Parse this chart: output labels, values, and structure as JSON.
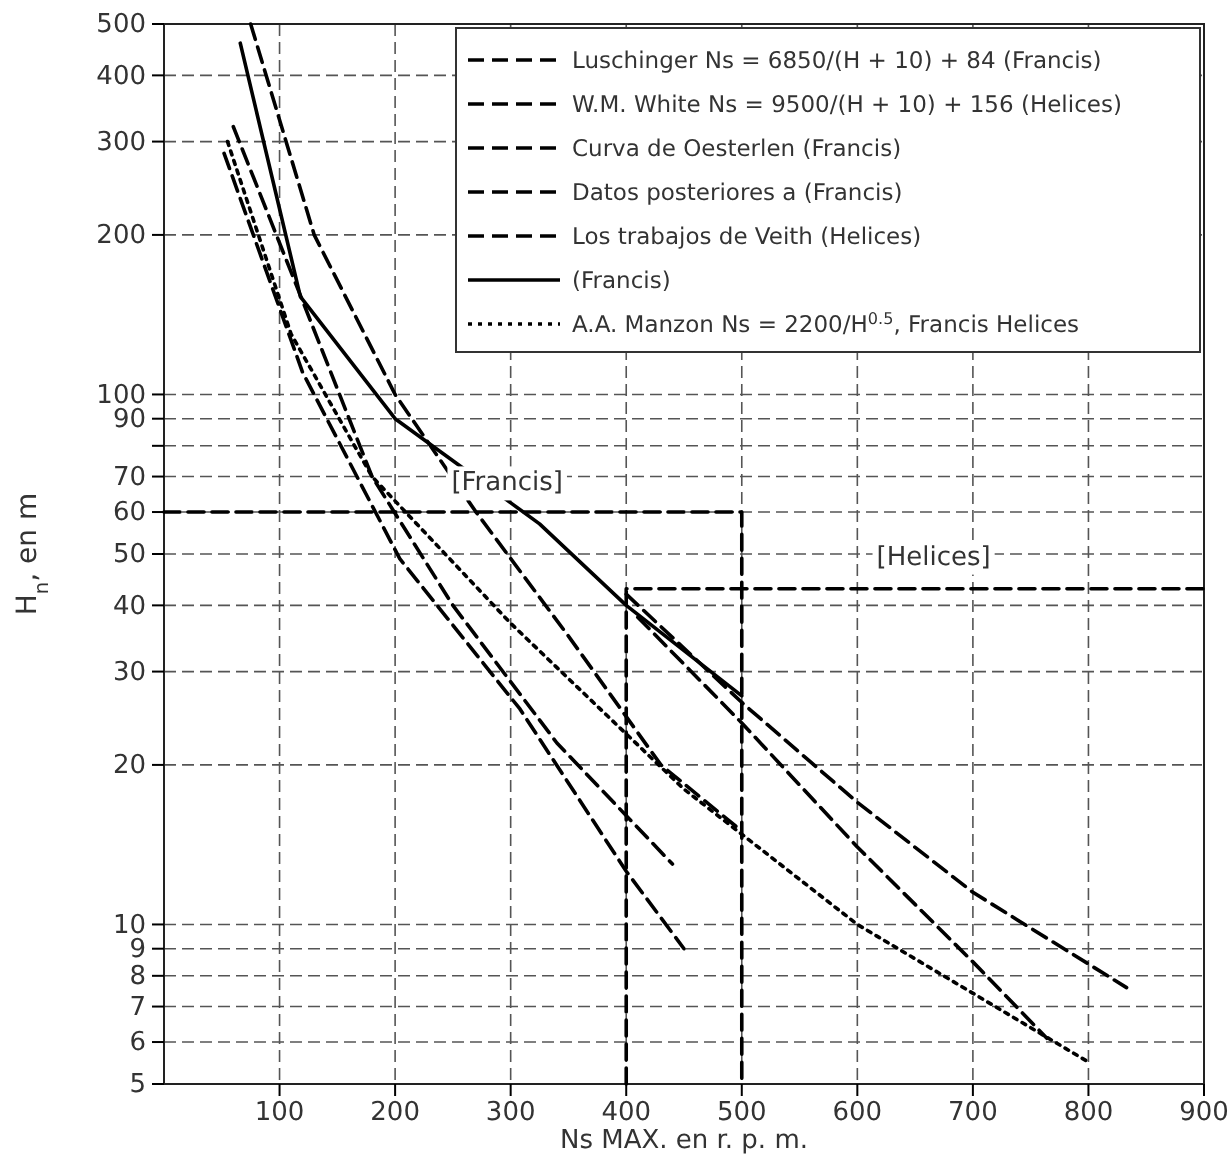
{
  "chart_data": {
    "type": "line",
    "xlabel": "Ns MAX. en r. p. m.",
    "ylabel": "H$_{n}$, en m",
    "log": "y",
    "xlim": [
      0,
      900
    ],
    "xticks": [
      100,
      200,
      300,
      400,
      500,
      600,
      700,
      800,
      900
    ],
    "ylim": [
      5,
      500
    ],
    "yticks": [
      5,
      6,
      7,
      8,
      9,
      10,
      20,
      30,
      40,
      50,
      60,
      70,
      {
        "value": 80,
        "label": null
      },
      90,
      100,
      200,
      300,
      400,
      500
    ],
    "grid": true,
    "legend": "top right",
    "series": [
      {
        "name": "Luschinger Ns = 6850/(H + 10) + 84 (Francis)",
        "color": "#000000",
        "line_style": "dashed",
        "x": [
          75,
          130,
          200,
          270,
          350,
          430,
          500
        ],
        "values": [
          500,
          200,
          100,
          60,
          35,
          20,
          15
        ]
      },
      {
        "name": "W.M. White Ns = 9500/(H + 10) + 156 (Helices)",
        "color": "#000000",
        "line_style": "dashed",
        "x": [
          400,
          502,
          600,
          700,
          833
        ],
        "values": [
          42,
          26,
          17,
          11.5,
          7.6
        ]
      },
      {
        "name": "Curva de Oesterlen (Francis)",
        "color": "#000000",
        "line_style": "dashed",
        "x": [
          60,
          120,
          180,
          250,
          340,
          440
        ],
        "values": [
          320,
          150,
          70,
          40,
          22,
          13
        ]
      },
      {
        "name": "Datos posteriores a (Francis)",
        "color": "#000000",
        "line_style": "dashed",
        "x": [
          52,
          120,
          204,
          308,
          400,
          450
        ],
        "values": [
          285,
          110,
          49,
          25.5,
          12.6,
          9
        ]
      },
      {
        "name": "Los trabajos de Veith (Helices)",
        "color": "#000000",
        "line_style": "dashed",
        "x": [
          410,
          500,
          600,
          700,
          764
        ],
        "values": [
          38,
          24,
          14,
          8.5,
          6.1
        ]
      },
      {
        "name": "(Francis)",
        "color": "#000000",
        "line_style": "solid",
        "x": [
          66,
          118,
          200,
          325,
          400,
          500
        ],
        "values": [
          460,
          153,
          90,
          57,
          40,
          27
        ]
      },
      {
        "name": "A.A. Manzon Ns = 2200/H$^{0.5}$, Francis Helices",
        "color": "#000000",
        "line_style": "dotted",
        "x": [
          55,
          110,
          180,
          300,
          450,
          600,
          800
        ],
        "values": [
          300,
          130,
          70,
          37,
          18,
          10,
          5.5
        ]
      },
      {
        "color": "#000000",
        "line_style": "dashed",
        "x": [
          0,
          500,
          500
        ],
        "values": [
          60,
          60,
          5
        ]
      },
      {
        "color": "#000000",
        "line_style": "dashed",
        "x": [
          400,
          400,
          900
        ],
        "values": [
          5,
          43,
          43
        ]
      }
    ],
    "annotations": [
      "[Francis]",
      "[Helices]"
    ]
  }
}
